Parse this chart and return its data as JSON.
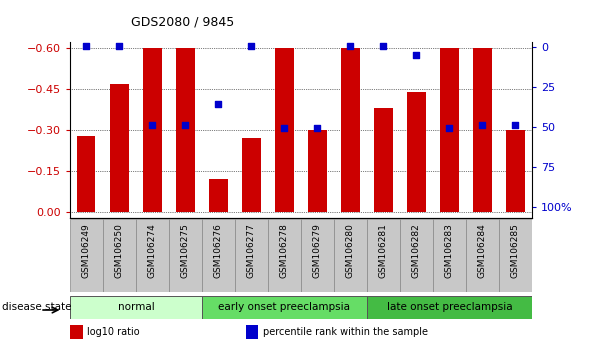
{
  "title": "GDS2080 / 9845",
  "samples": [
    "GSM106249",
    "GSM106250",
    "GSM106274",
    "GSM106275",
    "GSM106276",
    "GSM106277",
    "GSM106278",
    "GSM106279",
    "GSM106280",
    "GSM106281",
    "GSM106282",
    "GSM106283",
    "GSM106284",
    "GSM106285"
  ],
  "log10_ratio": [
    -0.28,
    -0.47,
    -0.6,
    -0.6,
    -0.12,
    -0.27,
    -0.6,
    -0.3,
    -0.6,
    -0.38,
    -0.44,
    -0.6,
    -0.6,
    -0.3
  ],
  "percentile_rank": [
    2,
    2,
    47,
    47,
    35,
    2,
    49,
    49,
    2,
    2,
    7,
    49,
    47,
    47
  ],
  "bar_color": "#cc0000",
  "marker_color": "#0000cc",
  "ylim_left": [
    -0.62,
    0.02
  ],
  "yticks_left": [
    0,
    -0.15,
    -0.3,
    -0.45,
    -0.6
  ],
  "ylim_right": [
    -3.15,
    107
  ],
  "yticks_right": [
    0,
    25,
    50,
    75,
    100
  ],
  "yticklabels_right": [
    "0",
    "25",
    "50",
    "75",
    "100%"
  ],
  "groups": [
    {
      "label": "normal",
      "start": 0,
      "end": 4,
      "color": "#ccffcc"
    },
    {
      "label": "early onset preeclampsia",
      "start": 4,
      "end": 9,
      "color": "#66dd66"
    },
    {
      "label": "late onset preeclampsia",
      "start": 9,
      "end": 14,
      "color": "#44bb44"
    }
  ],
  "disease_state_label": "disease state",
  "legend_items": [
    {
      "color": "#cc0000",
      "label": "log10 ratio"
    },
    {
      "color": "#0000cc",
      "label": "percentile rank within the sample"
    }
  ],
  "left_tick_color": "#cc0000",
  "right_tick_color": "#0000cc",
  "bg_color": "#ffffff",
  "bar_width": 0.55,
  "xtick_bg": "#cccccc"
}
